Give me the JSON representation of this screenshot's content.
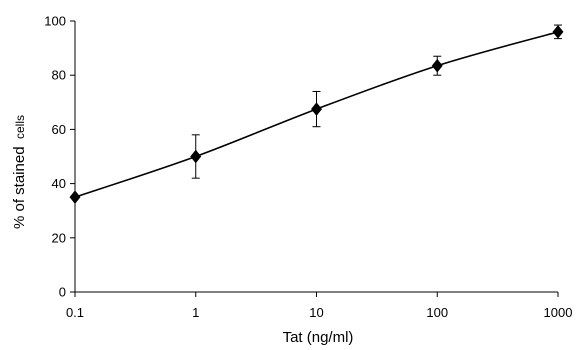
{
  "chart_data": {
    "type": "line",
    "title": "",
    "xlabel": "Tat (ng/ml)",
    "ylabel": "% of stained cells",
    "ylabel_main": "% of stained",
    "ylabel_small": "cells",
    "x_scale": "log",
    "xlim": [
      0.1,
      1000
    ],
    "ylim": [
      0,
      100
    ],
    "x_ticks": [
      0.1,
      1,
      10,
      100,
      1000
    ],
    "x_tick_labels": [
      "0.1",
      "1",
      "10",
      "100",
      "1000"
    ],
    "y_ticks": [
      0,
      20,
      40,
      60,
      80,
      100
    ],
    "y_tick_labels": [
      "0",
      "20",
      "40",
      "60",
      "80",
      "100"
    ],
    "grid": false,
    "series": [
      {
        "marker": "diamond",
        "color": "#000000",
        "points": [
          {
            "x": 0.1,
            "y": 35,
            "err": 0
          },
          {
            "x": 1,
            "y": 50,
            "err": 8
          },
          {
            "x": 10,
            "y": 67.5,
            "err": 6.5
          },
          {
            "x": 100,
            "y": 83.5,
            "err": 3.5
          },
          {
            "x": 1000,
            "y": 96,
            "err": 2.5
          }
        ]
      }
    ]
  }
}
